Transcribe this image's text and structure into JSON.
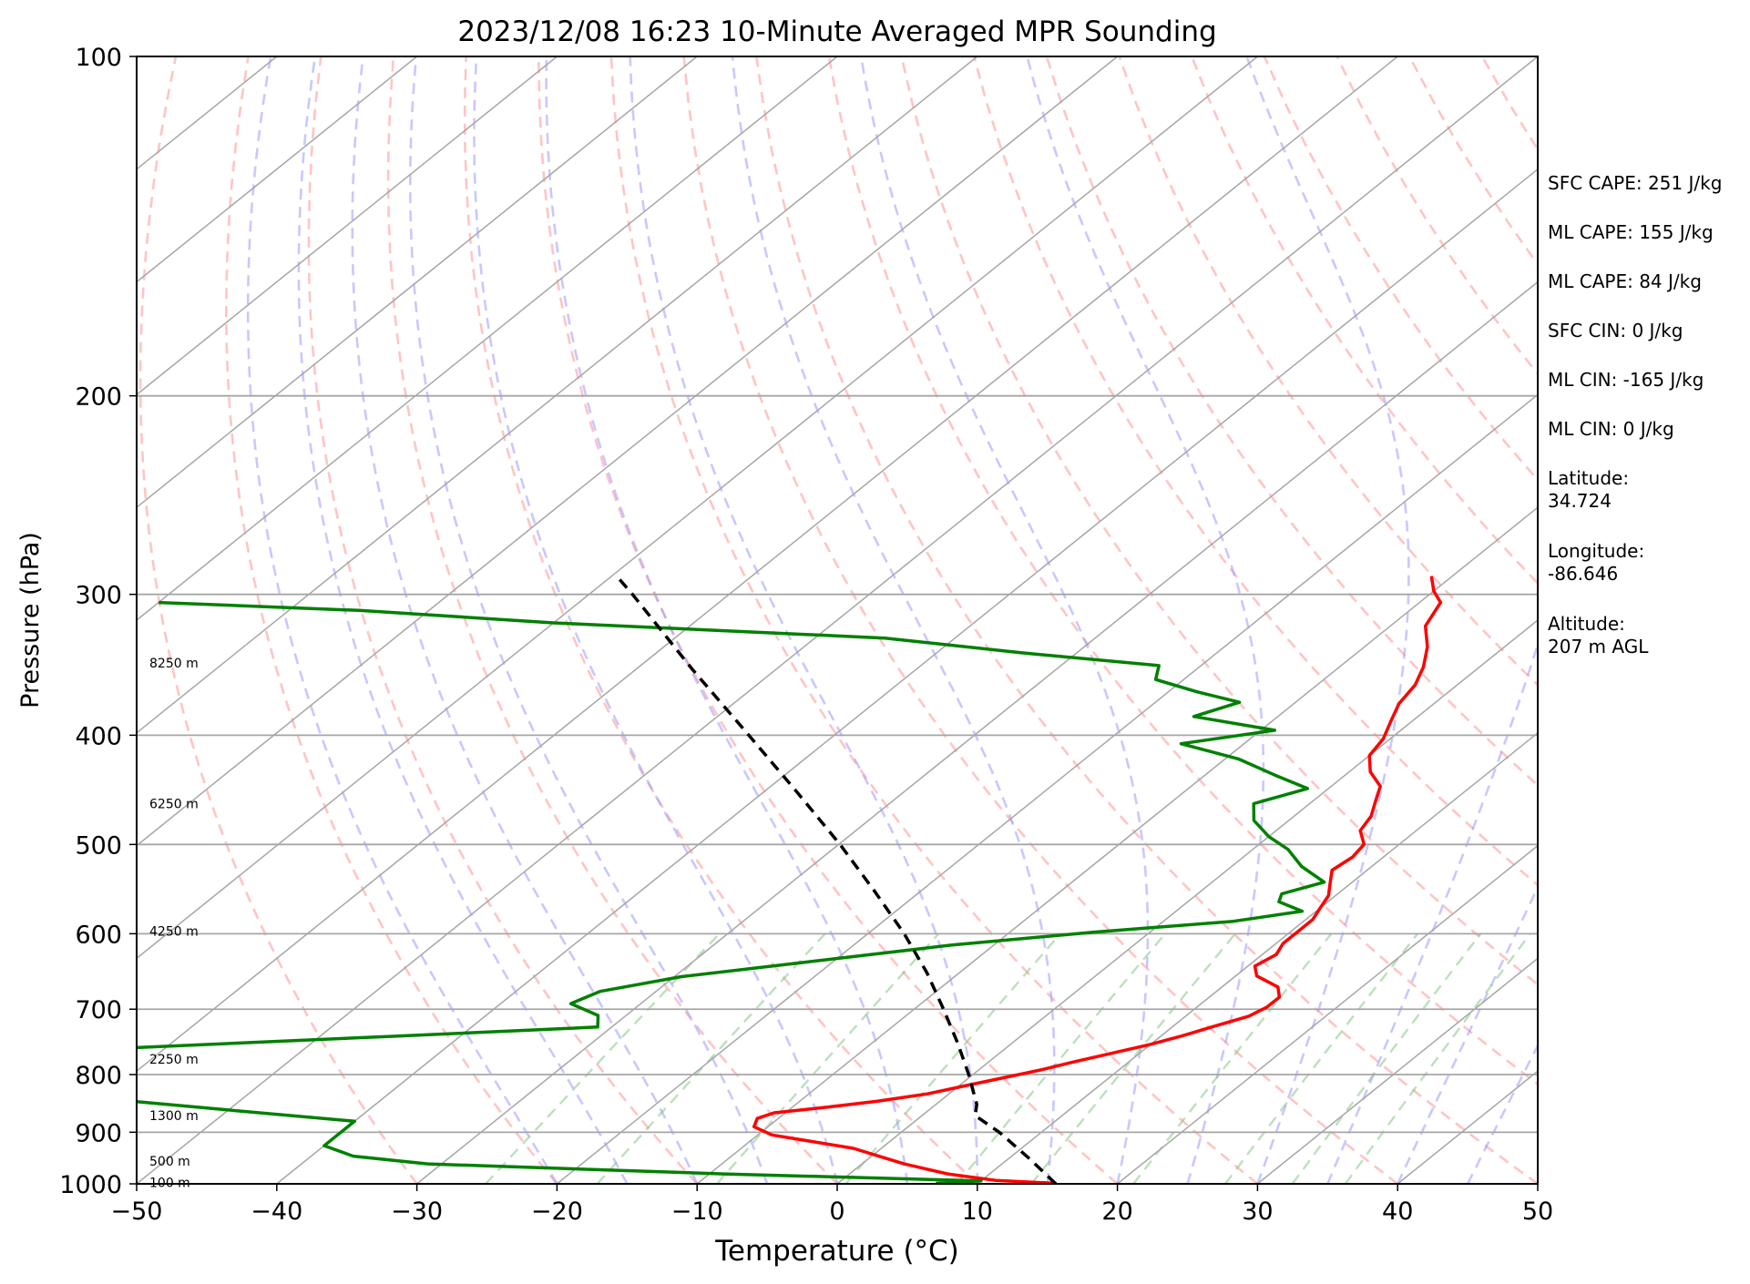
{
  "chart_data": {
    "type": "line",
    "title": "2023/12/08 16:23 10-Minute Averaged MPR Sounding",
    "xlabel": "Temperature (°C)",
    "ylabel": "Pressure (hPa)",
    "xlim": [
      -50,
      50
    ],
    "ylim": [
      1000,
      100
    ],
    "yscale": "log",
    "grid": true,
    "x_ticks": [
      -50,
      -40,
      -30,
      -20,
      -10,
      0,
      10,
      20,
      30,
      40,
      50
    ],
    "y_ticks": [
      100,
      200,
      300,
      400,
      500,
      600,
      700,
      800,
      900,
      1000
    ],
    "skew_diagram": true,
    "series": [
      {
        "color": "#ff0000",
        "points": [
          [
            999,
            15.6
          ],
          [
            993,
            11
          ],
          [
            980,
            7
          ],
          [
            960,
            3
          ],
          [
            930,
            -2
          ],
          [
            905,
            -9
          ],
          [
            890,
            -11
          ],
          [
            875,
            -11.5
          ],
          [
            865,
            -10.8
          ],
          [
            855,
            -7.5
          ],
          [
            845,
            -4.5
          ],
          [
            832,
            -1.5
          ],
          [
            818,
            0.5
          ],
          [
            805,
            2.5
          ],
          [
            792,
            4.5
          ],
          [
            780,
            6
          ],
          [
            766,
            8
          ],
          [
            752,
            10
          ],
          [
            739,
            11.5
          ],
          [
            724,
            13
          ],
          [
            710,
            14.5
          ],
          [
            697,
            15
          ],
          [
            683,
            15
          ],
          [
            669,
            14
          ],
          [
            654,
            11.5
          ],
          [
            641,
            10.5
          ],
          [
            626,
            11
          ],
          [
            612,
            10.5
          ],
          [
            597,
            10.5
          ],
          [
            583,
            10.5
          ],
          [
            569,
            10
          ],
          [
            555,
            9.5
          ],
          [
            541,
            8.5
          ],
          [
            527,
            7.5
          ],
          [
            513,
            7.8
          ],
          [
            500,
            7.5
          ],
          [
            486,
            6
          ],
          [
            472,
            5.5
          ],
          [
            458,
            4.5
          ],
          [
            444,
            3.5
          ],
          [
            431,
            1.5
          ],
          [
            417,
            0
          ],
          [
            403,
            -0.5
          ],
          [
            389,
            -1.5
          ],
          [
            375,
            -2.5
          ],
          [
            361,
            -3
          ],
          [
            348,
            -4
          ],
          [
            334,
            -5.5
          ],
          [
            320,
            -7.5
          ],
          [
            305,
            -8.5
          ],
          [
            298,
            -10
          ],
          [
            289,
            -11.5
          ]
        ]
      },
      {
        "color": "#008000",
        "points": [
          [
            999,
            7
          ],
          [
            994,
            10
          ],
          [
            980,
            -9
          ],
          [
            960,
            -31
          ],
          [
            945,
            -37
          ],
          [
            925,
            -40
          ],
          [
            910,
            -40
          ],
          [
            880,
            -40
          ],
          [
            860,
            -50
          ],
          [
            840,
            -60
          ],
          [
            820,
            -75
          ],
          [
            800,
            -85
          ],
          [
            780,
            -75
          ],
          [
            760,
            -65
          ],
          [
            740,
            -45
          ],
          [
            726,
            -31
          ],
          [
            709,
            -32
          ],
          [
            692,
            -35
          ],
          [
            675,
            -34
          ],
          [
            655,
            -29.5
          ],
          [
            636,
            -22
          ],
          [
            614,
            -13
          ],
          [
            598,
            -4
          ],
          [
            585,
            5
          ],
          [
            573,
            9
          ],
          [
            562,
            6.5
          ],
          [
            553,
            6
          ],
          [
            540,
            8
          ],
          [
            523,
            5
          ],
          [
            505,
            2.5
          ],
          [
            492,
            0
          ],
          [
            476,
            -2.5
          ],
          [
            460,
            -4
          ],
          [
            446,
            -1.5
          ],
          [
            434,
            -5
          ],
          [
            420,
            -9
          ],
          [
            407,
            -14.5
          ],
          [
            396,
            -9
          ],
          [
            385,
            -16
          ],
          [
            374,
            -14
          ],
          [
            366,
            -18
          ],
          [
            357,
            -22
          ],
          [
            347,
            -23
          ],
          [
            338,
            -34
          ],
          [
            328,
            -45
          ],
          [
            318,
            -70
          ],
          [
            310,
            -85
          ],
          [
            305,
            -100
          ]
        ]
      },
      {
        "color": "#000000",
        "dashed": true,
        "points": [
          [
            1000,
            15.6
          ],
          [
            950,
            11.5
          ],
          [
            900,
            7
          ],
          [
            870,
            3.8
          ],
          [
            850,
            2.9
          ],
          [
            800,
            -0.3
          ],
          [
            750,
            -3.9
          ],
          [
            700,
            -7.9
          ],
          [
            650,
            -12.3
          ],
          [
            600,
            -17.4
          ],
          [
            550,
            -23.3
          ],
          [
            500,
            -29.9
          ],
          [
            450,
            -37.5
          ],
          [
            400,
            -46.1
          ],
          [
            350,
            -55.9
          ],
          [
            300,
            -66.9
          ],
          [
            290,
            -69.4
          ]
        ]
      }
    ],
    "height_labels": [
      {
        "text": "100 m",
        "p": 997
      },
      {
        "text": "500 m",
        "p": 955
      },
      {
        "text": "1300 m",
        "p": 870
      },
      {
        "text": "2250 m",
        "p": 775
      },
      {
        "text": "4250 m",
        "p": 597
      },
      {
        "text": "6250 m",
        "p": 460
      },
      {
        "text": "8250 m",
        "p": 345
      }
    ],
    "annotations": [
      "SFC CAPE: 251 J/kg",
      "ML CAPE: 155 J/kg",
      "ML CAPE: 84 J/kg",
      "SFC CIN: 0 J/kg",
      "ML CIN: -165 J/kg",
      "ML CIN: 0 J/kg",
      "Latitude:",
      "34.724",
      "Longitude:",
      "-86.646",
      "Altitude:",
      "207 m AGL"
    ],
    "colors": {
      "temperature": "#ff0000",
      "dewpoint": "#008000",
      "parcel": "#000000",
      "isotherm": "#a6a6a6",
      "dry_adiabat": "#ff9c9c",
      "moist_adiabat": "#9b9bff",
      "mixing_ratio": "#86c486"
    }
  }
}
